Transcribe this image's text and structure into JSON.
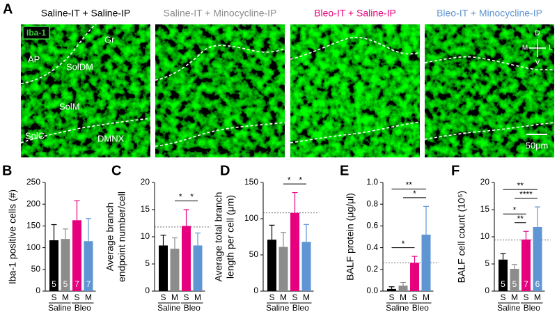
{
  "panel_a": {
    "label": "A",
    "images": [
      {
        "title": "Saline-IT + Saline-IP",
        "color": "#000000"
      },
      {
        "title": "Saline-IT + Minocycline-IP",
        "color": "#8c8c8c"
      },
      {
        "title": "Bleo-IT + Saline-IP",
        "color": "#e6007e"
      },
      {
        "title": "Bleo-IT + Minocycline-IP",
        "color": "#5f95d3"
      }
    ],
    "stain": "Iba-1",
    "regions": [
      "Gr",
      "AP",
      "SolDM",
      "SolM",
      "SolC",
      "DMNX"
    ],
    "compass": [
      "D",
      "M",
      "L",
      "V"
    ],
    "scale_bar": "50μm"
  },
  "chart_data": [
    {
      "type": "bar",
      "label": "B",
      "ylabel": [
        "Iba-1 positive cells (#)"
      ],
      "categories": [
        "S",
        "M",
        "S",
        "M"
      ],
      "groups": [
        "Saline",
        "Bleo"
      ],
      "colors": [
        "#000000",
        "#8c8c8c",
        "#e6007e",
        "#5f95d3"
      ],
      "values": [
        117,
        120,
        163,
        115
      ],
      "errors": [
        36,
        23,
        45,
        52
      ],
      "n": [
        5,
        5,
        7,
        7
      ],
      "ylim": [
        0,
        250
      ],
      "yticks": [
        0,
        50,
        100,
        150,
        200,
        250
      ]
    },
    {
      "type": "bar",
      "label": "C",
      "ylabel": [
        "Average branch",
        "endpoint number/cell"
      ],
      "categories": [
        "S",
        "M",
        "S",
        "M"
      ],
      "groups": [
        "Saline",
        "Bleo"
      ],
      "colors": [
        "#000000",
        "#8c8c8c",
        "#e6007e",
        "#5f95d3"
      ],
      "values": [
        8.4,
        7.8,
        12.0,
        8.4
      ],
      "errors": [
        1.9,
        2.0,
        3.0,
        2.3
      ],
      "reference_line": 11.8,
      "significance": [
        {
          "bars": [
            1,
            2
          ],
          "label": "*"
        },
        {
          "bars": [
            2,
            3
          ],
          "label": "*"
        }
      ],
      "ylim": [
        0,
        20
      ],
      "yticks": [
        0,
        5,
        10,
        15,
        20
      ]
    },
    {
      "type": "bar",
      "label": "D",
      "ylabel": [
        "Average total branch",
        "length per cell (μm)"
      ],
      "categories": [
        "S",
        "M",
        "S",
        "M"
      ],
      "groups": [
        "Saline",
        "Bleo"
      ],
      "colors": [
        "#000000",
        "#8c8c8c",
        "#e6007e",
        "#5f95d3"
      ],
      "values": [
        71,
        61,
        108,
        68
      ],
      "errors": [
        20,
        20,
        28,
        24
      ],
      "reference_line": 108,
      "significance": [
        {
          "bars": [
            1,
            2
          ],
          "label": "*"
        },
        {
          "bars": [
            2,
            3
          ],
          "label": "*"
        }
      ],
      "ylim": [
        0,
        150
      ],
      "yticks": [
        0,
        50,
        100,
        150
      ]
    },
    {
      "type": "bar",
      "label": "E",
      "ylabel": [
        "BALF protein (μg/μl)"
      ],
      "categories": [
        "S",
        "M",
        "S",
        "M"
      ],
      "groups": [
        "Saline",
        "Bleo"
      ],
      "colors": [
        "#000000",
        "#8c8c8c",
        "#e6007e",
        "#5f95d3"
      ],
      "values": [
        0.02,
        0.05,
        0.26,
        0.52
      ],
      "errors": [
        0.02,
        0.03,
        0.06,
        0.26
      ],
      "reference_line": 0.26,
      "significance": [
        {
          "bars": [
            0,
            2
          ],
          "label": "*"
        },
        {
          "bars": [
            1,
            3
          ],
          "label": "*"
        },
        {
          "bars": [
            0,
            3
          ],
          "label": "**"
        }
      ],
      "ylim": [
        0,
        1
      ],
      "yticks": [
        {
          "value": 0,
          "label": "0.0"
        },
        0.2,
        0.4,
        0.6,
        0.8,
        {
          "value": 1,
          "label": "1.0"
        }
      ]
    },
    {
      "type": "bar",
      "label": "F",
      "ylabel": [
        "BALF cell count (10⁵)"
      ],
      "categories": [
        "S",
        "M",
        "S",
        "M"
      ],
      "groups": [
        "Saline",
        "Bleo"
      ],
      "colors": [
        "#000000",
        "#8c8c8c",
        "#e6007e",
        "#5f95d3"
      ],
      "values": [
        5.8,
        4.1,
        9.5,
        11.8
      ],
      "errors": [
        1.1,
        0.8,
        1.5,
        3.7
      ],
      "n": [
        5,
        5,
        7,
        6
      ],
      "reference_line": 9.4,
      "significance": [
        {
          "bars": [
            1,
            2
          ],
          "label": "**"
        },
        {
          "bars": [
            0,
            2
          ],
          "label": "*"
        },
        {
          "bars": [
            1,
            3
          ],
          "label": "****"
        },
        {
          "bars": [
            0,
            3
          ],
          "label": "**"
        }
      ],
      "ylim": [
        0,
        20
      ],
      "yticks": [
        0,
        5,
        10,
        15,
        20
      ]
    }
  ]
}
